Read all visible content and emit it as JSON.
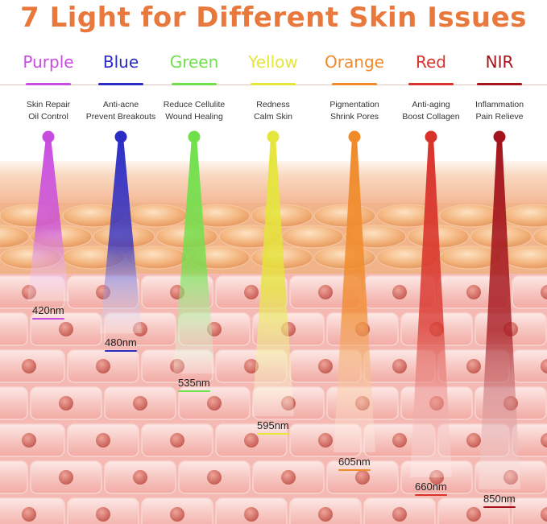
{
  "title": "7 Light for Different Skin Issues",
  "lights": [
    {
      "name": "Purple",
      "line1": "Skin Repair",
      "line2": "Oil Control",
      "wavelength": "420nm",
      "color": "#c94ce0"
    },
    {
      "name": "Blue",
      "line1": "Anti-acne",
      "line2": "Prevent Breakouts",
      "wavelength": "480nm",
      "color": "#2b2cc4"
    },
    {
      "name": "Green",
      "line1": "Reduce Cellulite",
      "line2": "Wound Healing",
      "wavelength": "535nm",
      "color": "#6fe04a"
    },
    {
      "name": "Yellow",
      "line1": "Redness",
      "line2": "Calm Skin",
      "wavelength": "595nm",
      "color": "#e5e53a"
    },
    {
      "name": "Orange",
      "line1": "Pigmentation",
      "line2": "Shrink Pores",
      "wavelength": "605nm",
      "color": "#f08a2a"
    },
    {
      "name": "Red",
      "line1": "Anti-aging",
      "line2": "Boost Collagen",
      "wavelength": "660nm",
      "color": "#d8322a"
    },
    {
      "name": "NIR",
      "line1": "Inflammation",
      "line2": "Pain Relieve",
      "wavelength": "850nm",
      "color": "#a3141c"
    }
  ],
  "colors": {
    "title": "#e9783c",
    "skin_surface": "#f6c7a8",
    "fat_cells": "#f2b47e",
    "dermis": "#f7c2bf",
    "cell_nucleus": "#d9726b"
  }
}
